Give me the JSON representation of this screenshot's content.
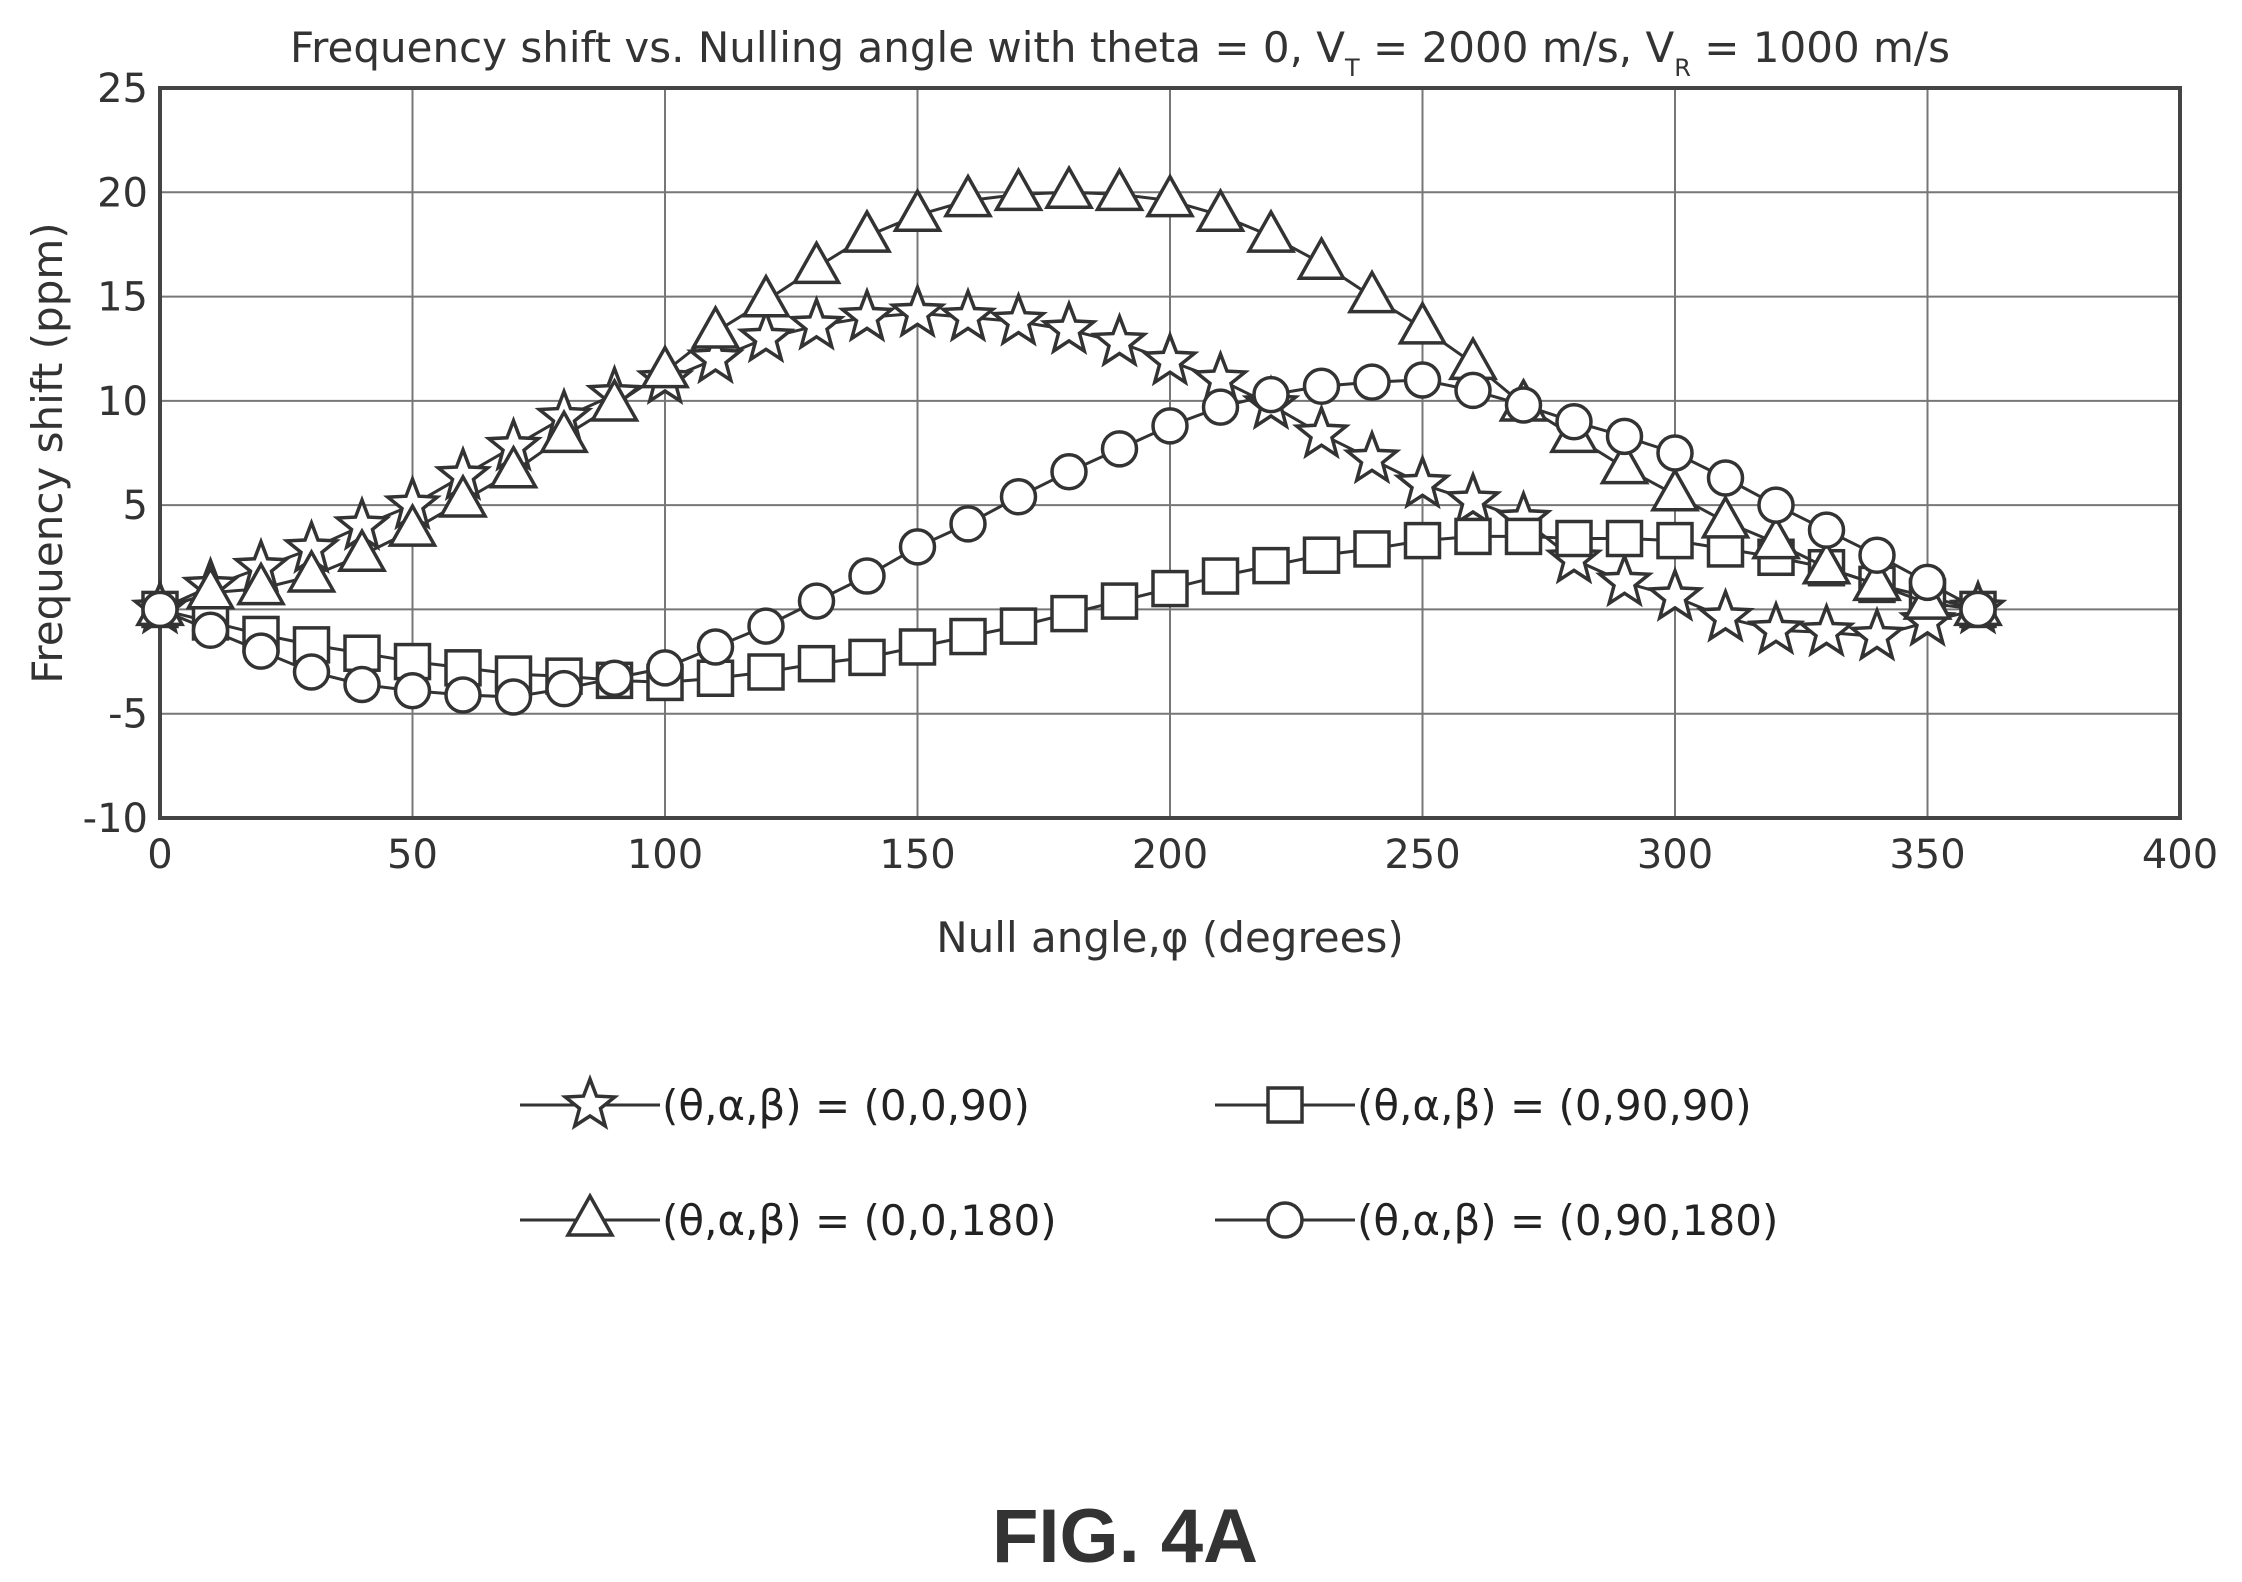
{
  "chart_data": {
    "type": "line",
    "title_parts": {
      "prefix": "Frequency shift vs. Nulling angle with theta = 0, V",
      "sub1": "T",
      "mid": " = 2000 m/s, V",
      "sub2": "R",
      "suffix": " = 1000 m/s"
    },
    "xlabel": "Null angle,φ (degrees)",
    "ylabel": "Frequency shift (ppm)",
    "xlim": [
      0,
      400
    ],
    "ylim": [
      -10,
      25
    ],
    "xticks": [
      0,
      50,
      100,
      150,
      200,
      250,
      300,
      350,
      400
    ],
    "yticks": [
      -10,
      -5,
      0,
      5,
      10,
      15,
      20,
      25
    ],
    "ytick_labels": [
      "-10",
      "-5",
      "",
      "5",
      "10",
      "15",
      "20",
      "25"
    ],
    "grid": true,
    "legend_position": "bottom",
    "series": [
      {
        "name": "(θ,α,β) = (0,0,90)",
        "marker": "star",
        "x": [
          0,
          10,
          20,
          30,
          40,
          50,
          60,
          70,
          80,
          90,
          100,
          110,
          120,
          130,
          140,
          150,
          160,
          170,
          180,
          190,
          200,
          210,
          220,
          230,
          240,
          250,
          260,
          270,
          280,
          290,
          300,
          310,
          320,
          330,
          340,
          350,
          360
        ],
        "y": [
          0,
          1.1,
          2.0,
          2.9,
          4.0,
          5.0,
          6.4,
          7.8,
          9.2,
          10.3,
          11.0,
          12.0,
          13.0,
          13.6,
          14.0,
          14.2,
          14.0,
          13.8,
          13.4,
          12.8,
          11.9,
          11.0,
          9.8,
          8.4,
          7.2,
          6.0,
          5.2,
          4.3,
          2.4,
          1.3,
          0.6,
          -0.4,
          -1.0,
          -1.1,
          -1.3,
          -0.6,
          0
        ]
      },
      {
        "name": "(θ,α,β) = (0,90,90)",
        "marker": "square",
        "x": [
          0,
          10,
          20,
          30,
          40,
          50,
          60,
          70,
          80,
          90,
          100,
          110,
          120,
          130,
          140,
          150,
          160,
          170,
          180,
          190,
          200,
          210,
          220,
          230,
          240,
          250,
          260,
          270,
          280,
          290,
          300,
          310,
          320,
          330,
          340,
          350,
          360
        ],
        "y": [
          0,
          -0.6,
          -1.2,
          -1.7,
          -2.1,
          -2.5,
          -2.8,
          -3.1,
          -3.2,
          -3.4,
          -3.5,
          -3.3,
          -3.0,
          -2.6,
          -2.3,
          -1.8,
          -1.3,
          -0.8,
          -0.2,
          0.4,
          1.0,
          1.6,
          2.1,
          2.6,
          2.9,
          3.3,
          3.5,
          3.5,
          3.4,
          3.4,
          3.3,
          2.9,
          2.5,
          2.0,
          1.2,
          0.6,
          0
        ]
      },
      {
        "name": "(θ,α,β) = (0,0,180)",
        "marker": "triangle",
        "x": [
          0,
          10,
          20,
          30,
          40,
          50,
          60,
          70,
          80,
          90,
          100,
          110,
          120,
          130,
          140,
          150,
          160,
          170,
          180,
          190,
          200,
          210,
          220,
          230,
          240,
          250,
          260,
          270,
          280,
          290,
          300,
          310,
          320,
          330,
          340,
          350,
          360
        ],
        "y": [
          0,
          0.8,
          1.0,
          1.6,
          2.6,
          3.8,
          5.2,
          6.6,
          8.3,
          9.8,
          11.4,
          13.3,
          14.8,
          16.4,
          17.9,
          18.9,
          19.6,
          19.9,
          20.0,
          19.9,
          19.6,
          18.9,
          17.9,
          16.6,
          15.0,
          13.5,
          11.8,
          9.8,
          8.3,
          6.8,
          5.5,
          4.2,
          3.2,
          2.0,
          1.2,
          0.3,
          0
        ]
      },
      {
        "name": "(θ,α,β) = (0,90,180)",
        "marker": "circle",
        "x": [
          0,
          10,
          20,
          30,
          40,
          50,
          60,
          70,
          80,
          90,
          100,
          110,
          120,
          130,
          140,
          150,
          160,
          170,
          180,
          190,
          200,
          210,
          220,
          230,
          240,
          250,
          260,
          270,
          280,
          290,
          300,
          310,
          320,
          330,
          340,
          350,
          360
        ],
        "y": [
          0,
          -1.0,
          -2.0,
          -3.0,
          -3.6,
          -3.9,
          -4.1,
          -4.2,
          -3.8,
          -3.3,
          -2.8,
          -1.8,
          -0.8,
          0.4,
          1.6,
          3.0,
          4.1,
          5.4,
          6.6,
          7.7,
          8.8,
          9.7,
          10.3,
          10.7,
          10.9,
          11.0,
          10.5,
          9.8,
          9.0,
          8.3,
          7.5,
          6.3,
          5.0,
          3.8,
          2.6,
          1.3,
          0
        ]
      }
    ]
  },
  "figure_label": "FIG. 4A"
}
